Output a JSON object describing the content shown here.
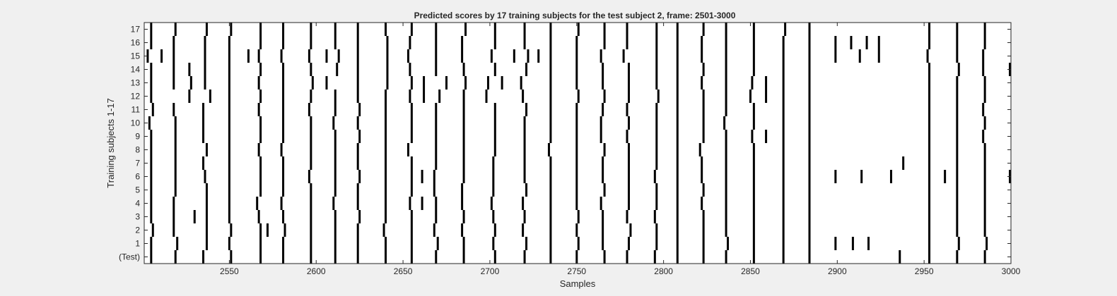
{
  "chart_data": {
    "type": "heatmap",
    "title": "Predicted scores by 17 training subjects for the test subject 2, frame: 2501-3000",
    "xlabel": "Samples",
    "ylabel": "Training subjects 1-17",
    "xlim": [
      2501,
      3000
    ],
    "x_ticks": [
      "2550",
      "2600",
      "2650",
      "2700",
      "2750",
      "2800",
      "2850",
      "2900",
      "2950",
      "3000"
    ],
    "y_tick_labels": [
      "(Test)",
      "1",
      "2",
      "3",
      "4",
      "5",
      "6",
      "7",
      "8",
      "9",
      "10",
      "11",
      "12",
      "13",
      "14",
      "15",
      "16",
      "17"
    ],
    "grid": false,
    "colors": {
      "mark": "#000000",
      "background": "#ffffff",
      "figure": "#f0f0f0",
      "text": "#262626"
    },
    "rows": [
      {
        "label": "(Test)",
        "events": [
          2505,
          2519,
          2535,
          2551,
          2568,
          2581,
          2597,
          2611,
          2624,
          2640,
          2655,
          2669,
          2685,
          2703,
          2720,
          2735,
          2750,
          2766,
          2779,
          2795,
          2808,
          2823,
          2836,
          2852,
          2869,
          2884,
          2936,
          2953,
          2969,
          2985
        ]
      },
      {
        "label": "1",
        "events": [
          2505,
          2520,
          2537,
          2550,
          2568,
          2581,
          2597,
          2611,
          2624,
          2640,
          2655,
          2670,
          2685,
          2702,
          2721,
          2735,
          2751,
          2765,
          2780,
          2796,
          2808,
          2823,
          2837,
          2852,
          2869,
          2884,
          2899,
          2909,
          2918,
          2953,
          2970,
          2986
        ]
      },
      {
        "label": "2",
        "events": [
          2506,
          2518,
          2537,
          2551,
          2568,
          2572,
          2582,
          2597,
          2611,
          2624,
          2639,
          2655,
          2668,
          2684,
          2703,
          2719,
          2735,
          2750,
          2765,
          2781,
          2796,
          2808,
          2823,
          2836,
          2852,
          2869,
          2884,
          2953,
          2969,
          2985
        ]
      },
      {
        "label": "3",
        "events": [
          2505,
          2518,
          2530,
          2537,
          2550,
          2567,
          2581,
          2597,
          2611,
          2625,
          2640,
          2655,
          2669,
          2685,
          2702,
          2720,
          2735,
          2751,
          2765,
          2779,
          2795,
          2808,
          2823,
          2836,
          2852,
          2869,
          2884,
          2953,
          2969,
          2985
        ]
      },
      {
        "label": "4",
        "events": [
          2505,
          2518,
          2537,
          2550,
          2566,
          2580,
          2597,
          2610,
          2624,
          2640,
          2654,
          2661,
          2669,
          2684,
          2701,
          2719,
          2735,
          2750,
          2764,
          2780,
          2796,
          2808,
          2822,
          2836,
          2852,
          2869,
          2884,
          2953,
          2969,
          2985
        ]
      },
      {
        "label": "5",
        "events": [
          2505,
          2519,
          2537,
          2550,
          2568,
          2581,
          2597,
          2611,
          2624,
          2640,
          2655,
          2668,
          2684,
          2702,
          2721,
          2735,
          2750,
          2766,
          2780,
          2796,
          2808,
          2823,
          2836,
          2852,
          2869,
          2884,
          2953,
          2969,
          2985
        ]
      },
      {
        "label": "6",
        "events": [
          2505,
          2519,
          2536,
          2550,
          2568,
          2581,
          2596,
          2611,
          2625,
          2640,
          2655,
          2661,
          2668,
          2685,
          2702,
          2720,
          2735,
          2750,
          2765,
          2780,
          2795,
          2808,
          2822,
          2836,
          2852,
          2869,
          2884,
          2899,
          2914,
          2931,
          2953,
          2962,
          2969,
          2985,
          3000
        ]
      },
      {
        "label": "7",
        "events": [
          2505,
          2519,
          2535,
          2550,
          2568,
          2581,
          2597,
          2611,
          2624,
          2640,
          2655,
          2669,
          2685,
          2702,
          2720,
          2735,
          2750,
          2765,
          2780,
          2796,
          2808,
          2822,
          2836,
          2852,
          2869,
          2884,
          2938,
          2953,
          2969,
          2985
        ]
      },
      {
        "label": "8",
        "events": [
          2505,
          2519,
          2537,
          2550,
          2567,
          2580,
          2597,
          2611,
          2624,
          2640,
          2653,
          2669,
          2685,
          2703,
          2720,
          2734,
          2750,
          2766,
          2780,
          2796,
          2808,
          2821,
          2836,
          2852,
          2869,
          2884,
          2953,
          2969,
          2985
        ]
      },
      {
        "label": "9",
        "events": [
          2505,
          2519,
          2535,
          2550,
          2568,
          2581,
          2597,
          2611,
          2625,
          2640,
          2655,
          2669,
          2685,
          2703,
          2720,
          2735,
          2750,
          2764,
          2779,
          2796,
          2808,
          2823,
          2836,
          2851,
          2859,
          2869,
          2884,
          2953,
          2969,
          2984
        ]
      },
      {
        "label": "10",
        "events": [
          2504,
          2519,
          2535,
          2550,
          2568,
          2581,
          2597,
          2610,
          2624,
          2640,
          2655,
          2669,
          2685,
          2703,
          2720,
          2735,
          2750,
          2764,
          2780,
          2796,
          2808,
          2823,
          2835,
          2852,
          2869,
          2884,
          2953,
          2969,
          2985
        ]
      },
      {
        "label": "11",
        "events": [
          2506,
          2518,
          2535,
          2550,
          2567,
          2581,
          2596,
          2611,
          2625,
          2640,
          2655,
          2669,
          2685,
          2703,
          2721,
          2735,
          2750,
          2765,
          2779,
          2796,
          2808,
          2823,
          2836,
          2852,
          2869,
          2884,
          2953,
          2969,
          2984
        ]
      },
      {
        "label": "12",
        "events": [
          2505,
          2527,
          2539,
          2550,
          2568,
          2581,
          2597,
          2611,
          2624,
          2640,
          2654,
          2662,
          2671,
          2685,
          2698,
          2719,
          2735,
          2751,
          2766,
          2780,
          2797,
          2808,
          2823,
          2836,
          2850,
          2859,
          2869,
          2884,
          2953,
          2969,
          2985
        ]
      },
      {
        "label": "13",
        "events": [
          2505,
          2518,
          2528,
          2536,
          2550,
          2567,
          2581,
          2598,
          2606,
          2624,
          2641,
          2655,
          2662,
          2675,
          2686,
          2699,
          2707,
          2718,
          2735,
          2750,
          2765,
          2780,
          2796,
          2808,
          2822,
          2836,
          2851,
          2859,
          2869,
          2884,
          2953,
          2969,
          2985
        ]
      },
      {
        "label": "14",
        "events": [
          2505,
          2518,
          2527,
          2536,
          2550,
          2568,
          2581,
          2597,
          2612,
          2624,
          2641,
          2654,
          2669,
          2685,
          2703,
          2721,
          2735,
          2750,
          2765,
          2780,
          2796,
          2808,
          2823,
          2836,
          2852,
          2869,
          2884,
          2953,
          2970,
          2984,
          3000
        ]
      },
      {
        "label": "15",
        "events": [
          2503,
          2511,
          2518,
          2536,
          2550,
          2561,
          2567,
          2580,
          2596,
          2606,
          2613,
          2624,
          2641,
          2653,
          2669,
          2684,
          2701,
          2714,
          2722,
          2728,
          2735,
          2750,
          2764,
          2777,
          2796,
          2808,
          2822,
          2836,
          2852,
          2869,
          2884,
          2899,
          2913,
          2924,
          2952,
          2969,
          2984
        ]
      },
      {
        "label": "16",
        "events": [
          2505,
          2518,
          2536,
          2550,
          2568,
          2581,
          2597,
          2611,
          2624,
          2641,
          2654,
          2669,
          2684,
          2703,
          2720,
          2735,
          2750,
          2766,
          2779,
          2796,
          2808,
          2822,
          2836,
          2852,
          2869,
          2884,
          2899,
          2908,
          2917,
          2924,
          2953,
          2969,
          2985
        ]
      },
      {
        "label": "17",
        "events": [
          2505,
          2519,
          2537,
          2551,
          2568,
          2581,
          2597,
          2611,
          2624,
          2640,
          2655,
          2669,
          2686,
          2703,
          2720,
          2735,
          2751,
          2766,
          2779,
          2796,
          2808,
          2823,
          2836,
          2852,
          2870,
          2884,
          2953,
          2969,
          2985
        ]
      }
    ]
  }
}
